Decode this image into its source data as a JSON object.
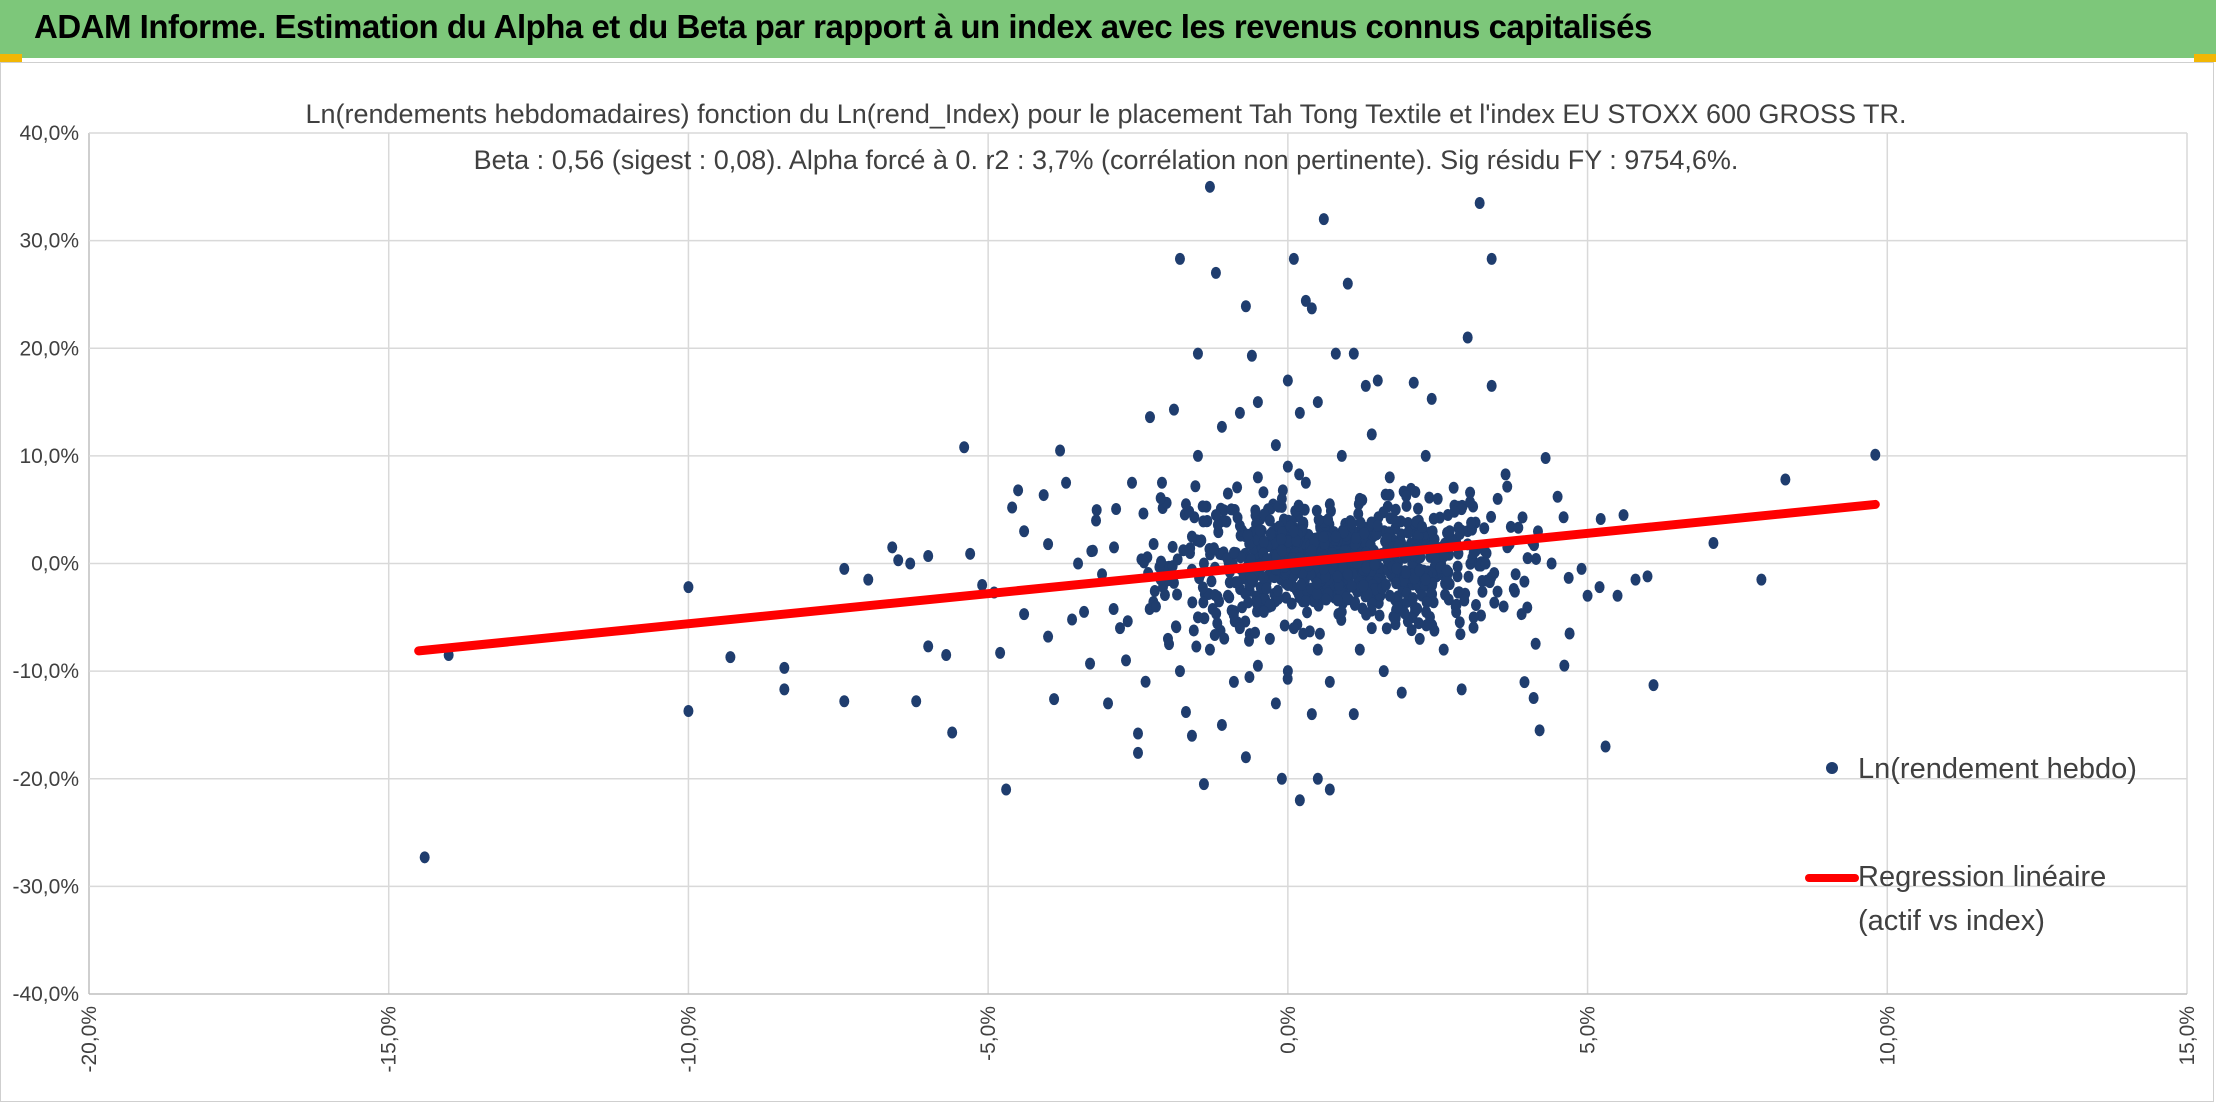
{
  "banner": {
    "title": "ADAM Informe. Estimation du Alpha et du Beta par rapport à un index avec les revenus connus capitalisés"
  },
  "colors": {
    "banner": "#7dc77a",
    "points": "#1f3d6e",
    "regression": "#ff0000",
    "corner_marks": "#f2b705"
  },
  "chart_data": {
    "type": "scatter",
    "title": "Ln(rendements hebdomadaires) fonction du Ln(rend_Index) pour le placement Tah Tong Textile  et l'index EU STOXX 600 GROSS TR.",
    "subtitle": "Beta : 0,56 (sigest : 0,08). Alpha forcé à 0. r2 : 3,7% (corrélation non pertinente). Sig résidu FY : 9754,6%.",
    "xlabel": "",
    "ylabel": "",
    "xlim": [
      -0.2,
      0.15
    ],
    "ylim": [
      -0.4,
      0.4
    ],
    "x_ticks": [
      -0.2,
      -0.15,
      -0.1,
      -0.05,
      0.0,
      0.05,
      0.1,
      0.15
    ],
    "y_ticks": [
      -0.4,
      -0.3,
      -0.2,
      -0.1,
      0.0,
      0.1,
      0.2,
      0.3,
      0.4
    ],
    "x_tick_labels": [
      "-20,0%",
      "-15,0%",
      "-10,0%",
      "-5,0%",
      "0,0%",
      "5,0%",
      "10,0%",
      "15,0%"
    ],
    "y_tick_labels": [
      "-40,0%",
      "-30,0%",
      "-20,0%",
      "-10,0%",
      "0,0%",
      "10,0%",
      "20,0%",
      "30,0%",
      "40,0%"
    ],
    "grid": true,
    "legend_position": "right",
    "series": [
      {
        "name": "Ln(rendement hebdo)",
        "kind": "scatter",
        "color": "#1f3d6e",
        "points": [
          [
            -0.144,
            -0.273
          ],
          [
            -0.14,
            -0.085
          ],
          [
            -0.1,
            -0.022
          ],
          [
            -0.1,
            -0.137
          ],
          [
            -0.093,
            -0.087
          ],
          [
            -0.084,
            -0.097
          ],
          [
            -0.084,
            -0.117
          ],
          [
            -0.074,
            -0.128
          ],
          [
            -0.074,
            -0.005
          ],
          [
            -0.07,
            -0.015
          ],
          [
            -0.066,
            0.015
          ],
          [
            -0.065,
            0.003
          ],
          [
            -0.063,
            0.0
          ],
          [
            -0.062,
            -0.128
          ],
          [
            -0.06,
            0.007
          ],
          [
            -0.06,
            -0.077
          ],
          [
            -0.057,
            -0.085
          ],
          [
            -0.056,
            -0.157
          ],
          [
            -0.054,
            0.108
          ],
          [
            -0.053,
            0.009
          ],
          [
            -0.051,
            -0.02
          ],
          [
            -0.049,
            -0.027
          ],
          [
            -0.048,
            -0.083
          ],
          [
            -0.047,
            -0.21
          ],
          [
            -0.046,
            0.052
          ],
          [
            -0.045,
            0.068
          ],
          [
            -0.044,
            0.03
          ],
          [
            -0.044,
            -0.047
          ],
          [
            -0.04,
            0.018
          ],
          [
            -0.04,
            -0.068
          ],
          [
            -0.039,
            -0.126
          ],
          [
            -0.038,
            0.105
          ],
          [
            -0.037,
            0.075
          ],
          [
            -0.036,
            -0.052
          ],
          [
            -0.035,
            0.0
          ],
          [
            -0.034,
            -0.045
          ],
          [
            -0.033,
            -0.093
          ],
          [
            -0.032,
            0.04
          ],
          [
            -0.031,
            -0.01
          ],
          [
            -0.03,
            -0.13
          ],
          [
            -0.029,
            0.015
          ],
          [
            -0.028,
            -0.06
          ],
          [
            -0.027,
            -0.09
          ],
          [
            -0.026,
            0.075
          ],
          [
            -0.025,
            -0.176
          ],
          [
            -0.025,
            -0.158
          ],
          [
            -0.024,
            0.001
          ],
          [
            -0.023,
            0.136
          ],
          [
            -0.022,
            -0.04
          ],
          [
            -0.021,
            0.075
          ],
          [
            -0.02,
            -0.07
          ],
          [
            -0.019,
            0.143
          ],
          [
            -0.019,
            -0.018
          ],
          [
            -0.018,
            -0.1
          ],
          [
            -0.018,
            0.283
          ],
          [
            -0.017,
            0.055
          ],
          [
            -0.017,
            -0.138
          ],
          [
            -0.016,
            0.025
          ],
          [
            -0.016,
            -0.16
          ],
          [
            -0.015,
            0.195
          ],
          [
            -0.015,
            -0.05
          ],
          [
            -0.015,
            0.1
          ],
          [
            -0.014,
            -0.205
          ],
          [
            -0.014,
            0.0
          ],
          [
            -0.013,
            0.35
          ],
          [
            -0.013,
            -0.08
          ],
          [
            -0.012,
            0.27
          ],
          [
            -0.012,
            0.045
          ],
          [
            -0.011,
            -0.15
          ],
          [
            -0.011,
            0.127
          ],
          [
            -0.01,
            -0.03
          ],
          [
            -0.01,
            0.065
          ],
          [
            -0.009,
            0.01
          ],
          [
            -0.009,
            -0.11
          ],
          [
            -0.008,
            0.14
          ],
          [
            -0.008,
            -0.06
          ],
          [
            -0.008,
            0.035
          ],
          [
            -0.007,
            0.239
          ],
          [
            -0.007,
            -0.18
          ],
          [
            -0.006,
            0.193
          ],
          [
            -0.006,
            -0.015
          ],
          [
            -0.005,
            0.15
          ],
          [
            -0.005,
            0.08
          ],
          [
            -0.005,
            -0.095
          ],
          [
            -0.004,
            -0.045
          ],
          [
            -0.004,
            0.02
          ],
          [
            -0.003,
            0.04
          ],
          [
            -0.003,
            -0.07
          ],
          [
            -0.002,
            -0.005
          ],
          [
            -0.002,
            0.11
          ],
          [
            -0.002,
            -0.13
          ],
          [
            -0.001,
            0.06
          ],
          [
            -0.001,
            -0.2
          ],
          [
            -0.001,
            0.012
          ],
          [
            0.0,
            -0.02
          ],
          [
            0.0,
            0.09
          ],
          [
            0.0,
            0.17
          ],
          [
            0.0,
            -0.1
          ],
          [
            0.001,
            0.283
          ],
          [
            0.001,
            0.03
          ],
          [
            0.001,
            -0.06
          ],
          [
            0.002,
            0.14
          ],
          [
            0.002,
            -0.22
          ],
          [
            0.002,
            0.005
          ],
          [
            0.003,
            0.244
          ],
          [
            0.003,
            -0.035
          ],
          [
            0.003,
            0.075
          ],
          [
            0.004,
            0.237
          ],
          [
            0.004,
            -0.14
          ],
          [
            0.004,
            0.012
          ],
          [
            0.005,
            -0.2
          ],
          [
            0.005,
            0.15
          ],
          [
            0.005,
            -0.08
          ],
          [
            0.006,
            0.32
          ],
          [
            0.006,
            -0.005
          ],
          [
            0.007,
            -0.21
          ],
          [
            0.007,
            0.055
          ],
          [
            0.007,
            -0.11
          ],
          [
            0.008,
            0.195
          ],
          [
            0.008,
            0.025
          ],
          [
            0.009,
            -0.045
          ],
          [
            0.009,
            0.1
          ],
          [
            0.01,
            0.26
          ],
          [
            0.01,
            -0.01
          ],
          [
            0.011,
            0.195
          ],
          [
            0.011,
            -0.14
          ],
          [
            0.012,
            0.06
          ],
          [
            0.012,
            -0.08
          ],
          [
            0.013,
            0.165
          ],
          [
            0.013,
            0.01
          ],
          [
            0.014,
            0.12
          ],
          [
            0.014,
            -0.06
          ],
          [
            0.015,
            0.17
          ],
          [
            0.015,
            0.035
          ],
          [
            0.016,
            -0.1
          ],
          [
            0.017,
            0.08
          ],
          [
            0.017,
            -0.03
          ],
          [
            0.018,
            0.05
          ],
          [
            0.019,
            -0.12
          ],
          [
            0.02,
            0.015
          ],
          [
            0.021,
            0.168
          ],
          [
            0.022,
            -0.07
          ],
          [
            0.023,
            0.1
          ],
          [
            0.023,
            -0.015
          ],
          [
            0.024,
            0.153
          ],
          [
            0.025,
            0.06
          ],
          [
            0.026,
            -0.08
          ],
          [
            0.027,
            0.03
          ],
          [
            0.028,
            -0.04
          ],
          [
            0.029,
            -0.117
          ],
          [
            0.03,
            0.21
          ],
          [
            0.031,
            0.01
          ],
          [
            0.031,
            -0.05
          ],
          [
            0.032,
            0.335
          ],
          [
            0.033,
            0.0
          ],
          [
            0.034,
            0.165
          ],
          [
            0.034,
            0.283
          ],
          [
            0.035,
            0.06
          ],
          [
            0.036,
            -0.04
          ],
          [
            0.037,
            0.018
          ],
          [
            0.038,
            -0.01
          ],
          [
            0.039,
            -0.047
          ],
          [
            0.04,
            0.005
          ],
          [
            0.041,
            -0.125
          ],
          [
            0.042,
            -0.155
          ],
          [
            0.043,
            0.098
          ],
          [
            0.044,
            0.0
          ],
          [
            0.045,
            0.062
          ],
          [
            0.046,
            0.043
          ],
          [
            0.047,
            -0.065
          ],
          [
            0.049,
            -0.005
          ],
          [
            0.05,
            -0.03
          ],
          [
            0.052,
            -0.022
          ],
          [
            0.053,
            -0.17
          ],
          [
            0.055,
            -0.03
          ],
          [
            0.056,
            0.045
          ],
          [
            0.058,
            -0.015
          ],
          [
            0.06,
            -0.012
          ],
          [
            0.061,
            -0.113
          ],
          [
            0.071,
            0.019
          ],
          [
            0.079,
            -0.015
          ],
          [
            0.083,
            0.078
          ],
          [
            0.098,
            0.101
          ]
        ]
      },
      {
        "name": "Regression linéaire (actif vs index)",
        "kind": "line",
        "color": "#ff0000",
        "slope": 0.56,
        "intercept": 0.0,
        "x_range": [
          -0.145,
          0.098
        ]
      }
    ],
    "cloud": {
      "description_of_density": "dense core around origin",
      "center": [
        0.008,
        0.0
      ],
      "spread_x": 0.014,
      "spread_y": 0.035,
      "count": 900
    }
  },
  "legend": {
    "scatter_label": "Ln(rendement hebdo)",
    "line_label_1": "Regression linéaire",
    "line_label_2": "(actif vs index)"
  }
}
